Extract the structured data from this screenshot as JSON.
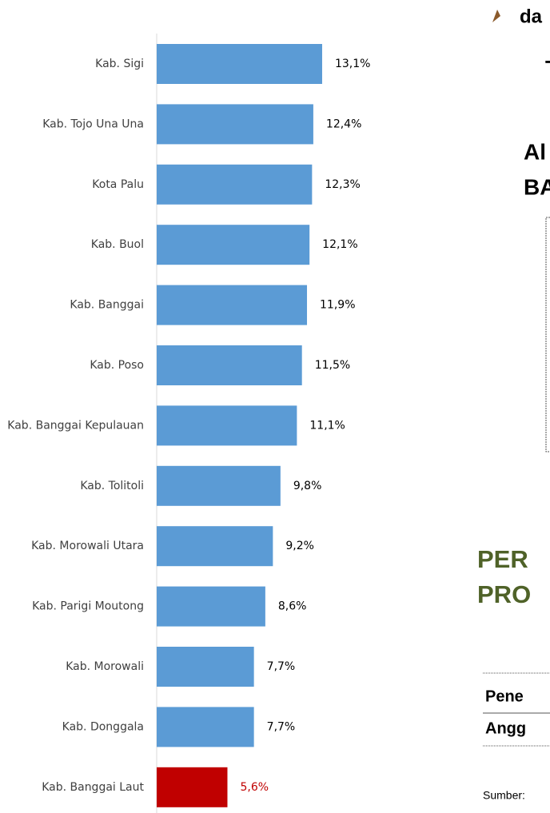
{
  "chart_data": {
    "type": "bar",
    "orientation": "horizontal",
    "categories": [
      "Kab. Sigi",
      "Kab. Tojo Una Una",
      "Kota Palu",
      "Kab. Buol",
      "Kab. Banggai",
      "Kab. Poso",
      "Kab. Banggai Kepulauan",
      "Kab. Tolitoli",
      "Kab. Morowali Utara",
      "Kab. Parigi Moutong",
      "Kab. Morowali",
      "Kab. Donggala",
      "Kab. Banggai Laut"
    ],
    "values": [
      13.1,
      12.4,
      12.3,
      12.1,
      11.9,
      11.5,
      11.1,
      9.8,
      9.2,
      8.6,
      7.7,
      7.7,
      5.6
    ],
    "value_labels": [
      "13,1%",
      "12,4%",
      "12,3%",
      "12,1%",
      "11,9%",
      "11,5%",
      "11,1%",
      "9,8%",
      "9,2%",
      "8,6%",
      "7,7%",
      "7,7%",
      "5,6%"
    ],
    "colors": [
      "#5b9bd5",
      "#5b9bd5",
      "#5b9bd5",
      "#5b9bd5",
      "#5b9bd5",
      "#5b9bd5",
      "#5b9bd5",
      "#5b9bd5",
      "#5b9bd5",
      "#5b9bd5",
      "#5b9bd5",
      "#5b9bd5",
      "#c00000"
    ],
    "xlim": [
      0,
      25
    ]
  },
  "side_texts": {
    "t1": "da",
    "t2": "T",
    "t3": "Al",
    "t4": "BA",
    "t5": "PER",
    "t6": "PRO",
    "t7": "Pene",
    "t8": "Angg",
    "t9": "Sumber:"
  }
}
